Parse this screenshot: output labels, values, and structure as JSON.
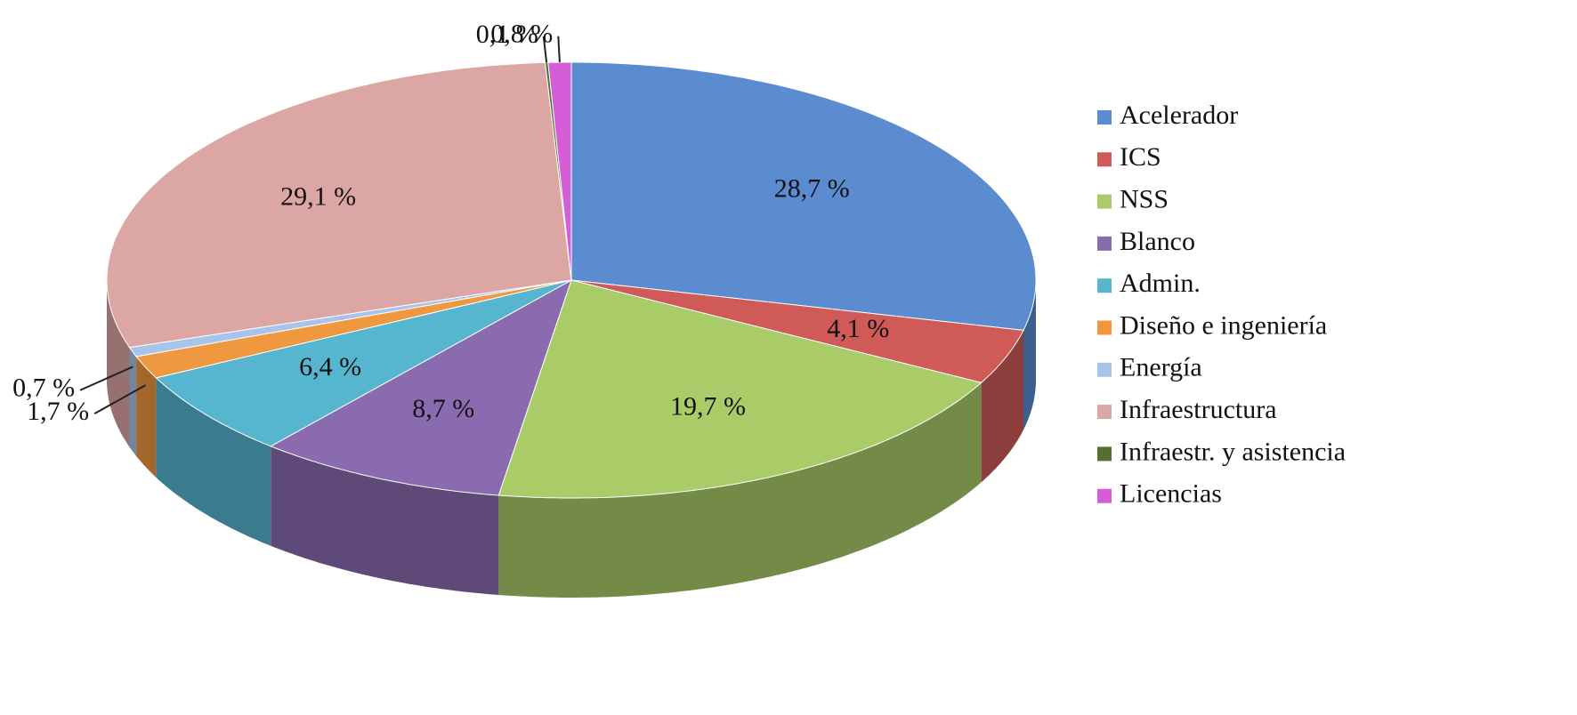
{
  "chart_data": {
    "type": "pie",
    "categories": [
      "Acelerador",
      "ICS",
      "NSS",
      "Blanco",
      "Admin.",
      "Diseño e ingeniería",
      "Energía",
      "Infraestructura",
      "Infraestr. y asistencia",
      "Licencias"
    ],
    "values": [
      28.7,
      4.1,
      19.7,
      8.7,
      6.4,
      1.7,
      0.7,
      29.1,
      0.1,
      0.8
    ],
    "value_labels": [
      "28,7 %",
      "4,1 %",
      "19,7 %",
      "8,7 %",
      "6,4 %",
      "1,7 %",
      "0,7 %",
      "29,1 %",
      "0,1 %",
      "0,8 %"
    ],
    "colors": [
      "#5a8ccf",
      "#cf5a57",
      "#a9cc68",
      "#8a6bb0",
      "#56b5cf",
      "#f0983f",
      "#a9c4ea",
      "#dca6a4",
      "#55702c",
      "#d55ed8"
    ],
    "legend": "right"
  }
}
